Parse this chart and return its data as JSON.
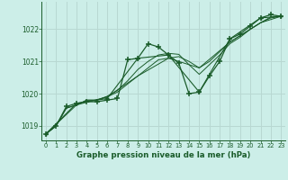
{
  "title": "Graphe pression niveau de la mer (hPa)",
  "bg_color": "#cceee8",
  "grid_color": "#b8d8d2",
  "line_color": "#1a5c2a",
  "x_ticks": [
    0,
    1,
    2,
    3,
    4,
    5,
    6,
    7,
    8,
    9,
    10,
    11,
    12,
    13,
    14,
    15,
    16,
    17,
    18,
    19,
    20,
    21,
    22,
    23
  ],
  "y_ticks": [
    1019,
    1020,
    1021,
    1022
  ],
  "ylim": [
    1018.55,
    1022.85
  ],
  "xlim": [
    -0.4,
    23.4
  ],
  "series1_x": [
    0,
    1,
    2,
    3,
    4,
    5,
    6,
    7,
    8,
    9,
    10,
    11,
    12,
    13,
    14,
    15,
    16,
    17,
    18,
    19,
    20,
    21,
    22,
    23
  ],
  "series1_y": [
    1018.75,
    1019.0,
    1019.6,
    1019.7,
    1019.75,
    1019.75,
    1019.8,
    1019.85,
    1021.05,
    1021.1,
    1021.55,
    1021.45,
    1021.2,
    1020.95,
    1020.0,
    1020.05,
    1020.55,
    1021.0,
    1021.7,
    1021.85,
    1022.1,
    1022.35,
    1022.45,
    1022.4
  ],
  "series2_x": [
    0,
    1,
    2,
    3,
    4,
    5,
    6,
    7,
    8,
    9,
    10,
    11,
    12,
    13,
    14,
    15,
    16,
    17,
    18,
    19,
    20,
    21,
    22,
    23
  ],
  "series2_y": [
    1018.75,
    1019.0,
    1019.55,
    1019.65,
    1019.8,
    1019.8,
    1019.9,
    1020.05,
    1020.3,
    1020.55,
    1020.8,
    1021.05,
    1021.1,
    1021.15,
    1021.0,
    1020.8,
    1021.0,
    1021.3,
    1021.6,
    1021.8,
    1022.0,
    1022.2,
    1022.35,
    1022.4
  ],
  "series3_x": [
    0,
    1,
    2,
    3,
    4,
    5,
    6,
    7,
    8,
    9,
    10,
    11,
    12,
    13,
    14,
    15,
    16,
    17,
    18,
    19,
    20,
    21,
    22,
    23
  ],
  "series3_y": [
    1018.75,
    1019.0,
    1019.55,
    1019.65,
    1019.8,
    1019.8,
    1019.92,
    1020.1,
    1020.4,
    1020.75,
    1021.0,
    1021.2,
    1021.25,
    1021.22,
    1020.9,
    1020.6,
    1020.9,
    1021.2,
    1021.55,
    1021.75,
    1022.0,
    1022.2,
    1022.38,
    1022.4
  ],
  "series4_x": [
    0,
    3,
    6,
    9,
    12,
    15,
    18,
    21,
    23
  ],
  "series4_y": [
    1018.75,
    1019.7,
    1019.85,
    1021.1,
    1021.2,
    1020.05,
    1021.7,
    1022.35,
    1022.4
  ],
  "series5_x": [
    0,
    3,
    6,
    9,
    12,
    15,
    18,
    21,
    23
  ],
  "series5_y": [
    1018.75,
    1019.65,
    1019.9,
    1020.55,
    1021.1,
    1020.8,
    1021.6,
    1022.2,
    1022.4
  ]
}
